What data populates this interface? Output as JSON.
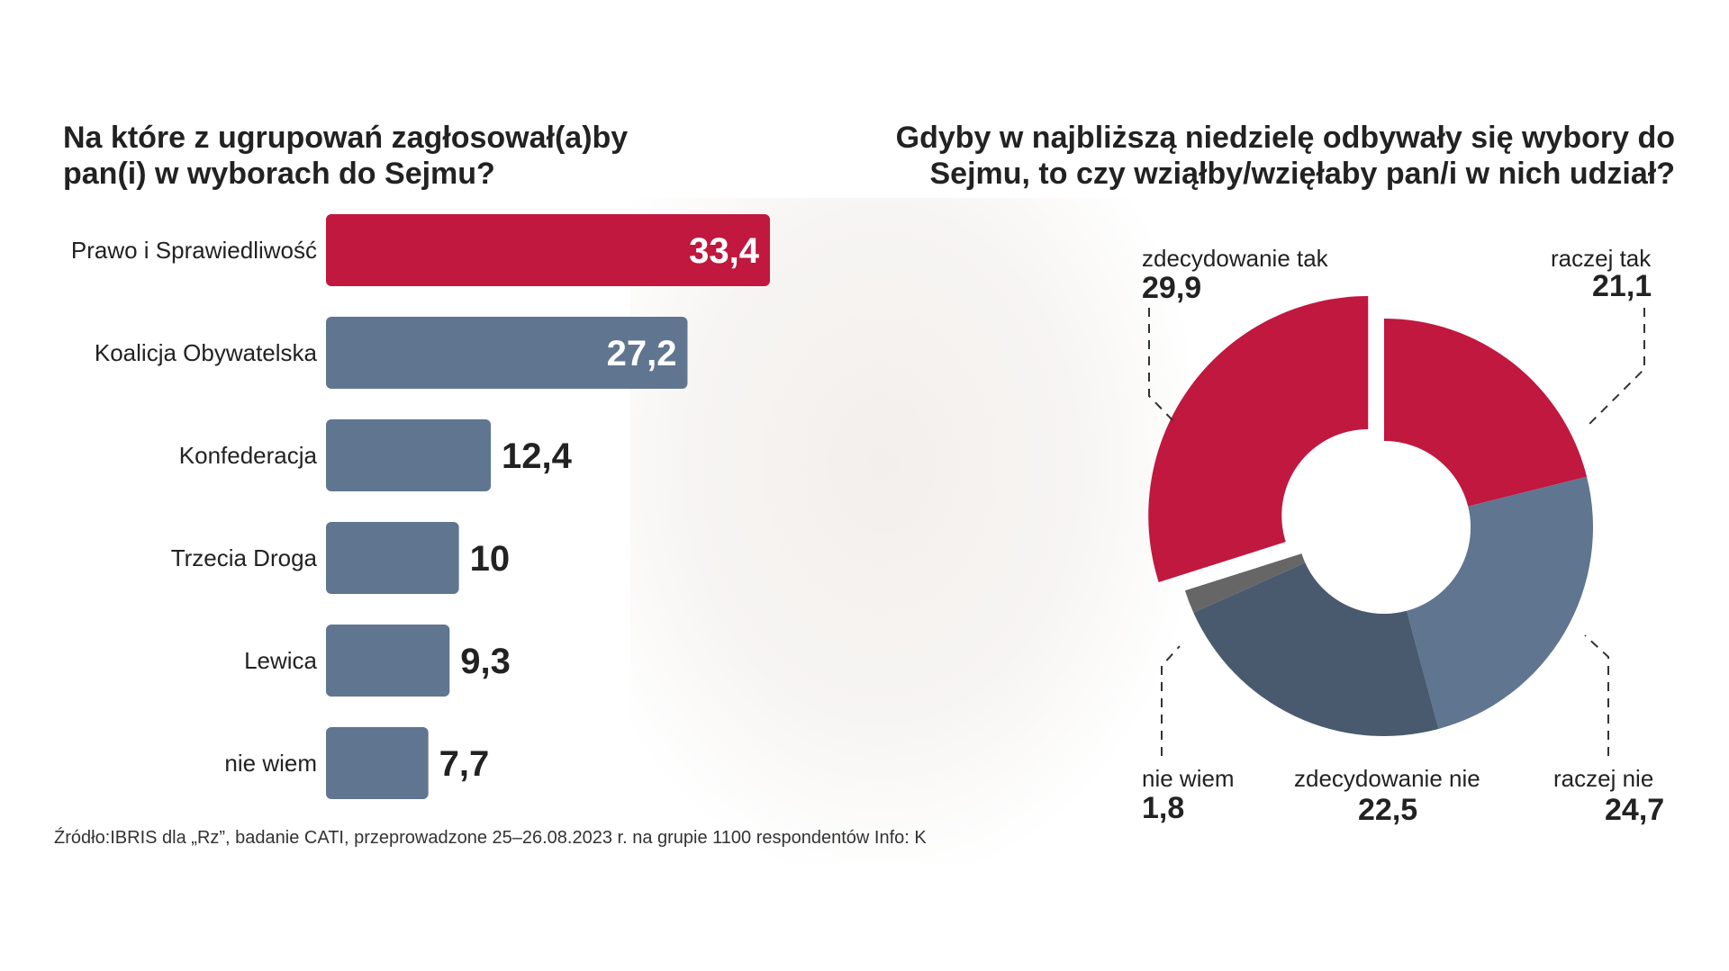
{
  "chart_data": [
    {
      "type": "bar",
      "orientation": "horizontal",
      "title": "Na które z ugrupowań  zagłosował(a)by pan(i) w wyborach do Sejmu?",
      "title_lines": [
        "Na które z ugrupowań  zagłosował(a)by",
        "pan(i) w wyborach do Sejmu?"
      ],
      "categories": [
        "Prawo i Sprawiedliwość",
        "Koalicja Obywatelska",
        "Konfederacja",
        "Trzecia Droga",
        "Lewica",
        "nie wiem"
      ],
      "values": [
        33.4,
        27.2,
        12.4,
        10,
        9.3,
        7.7
      ],
      "value_labels": [
        "33,4",
        "27,2",
        "12,4",
        "10",
        "9,3",
        "7,7"
      ],
      "colors": [
        "#c0183f",
        "#607590",
        "#607590",
        "#607590",
        "#607590",
        "#607590"
      ]
    },
    {
      "type": "pie",
      "donut": true,
      "title": "Gdyby w najbliższą niedzielę odbywały się wybory do Sejmu, to czy wziąłby/wzięłaby pan/i w nich udział?",
      "title_lines": [
        "Gdyby w najbliższą niedzielę odbywały się wybory do",
        "Sejmu, to czy wziąłby/wzięłaby pan/i w nich udział?"
      ],
      "slices": [
        {
          "label": "raczej tak",
          "value": 21.1,
          "value_label": "21,1",
          "color": "#c0183f"
        },
        {
          "label": "raczej nie",
          "value": 24.7,
          "value_label": "24,7",
          "color": "#607590"
        },
        {
          "label": "zdecydowanie nie",
          "value": 22.5,
          "value_label": "22,5",
          "color": "#4a5a6e"
        },
        {
          "label": "nie wiem",
          "value": 1.8,
          "value_label": "1,8",
          "color": "#666666"
        },
        {
          "label": "zdecydowanie tak",
          "value": 29.9,
          "value_label": "29,9",
          "color": "#c0183f",
          "exploded": true
        }
      ]
    }
  ],
  "source": "Źródło:IBRIS dla „Rz”, badanie CATI, przeprowadzone 25–26.08.2023 r. na grupie 1100 respondentów   Info: K"
}
